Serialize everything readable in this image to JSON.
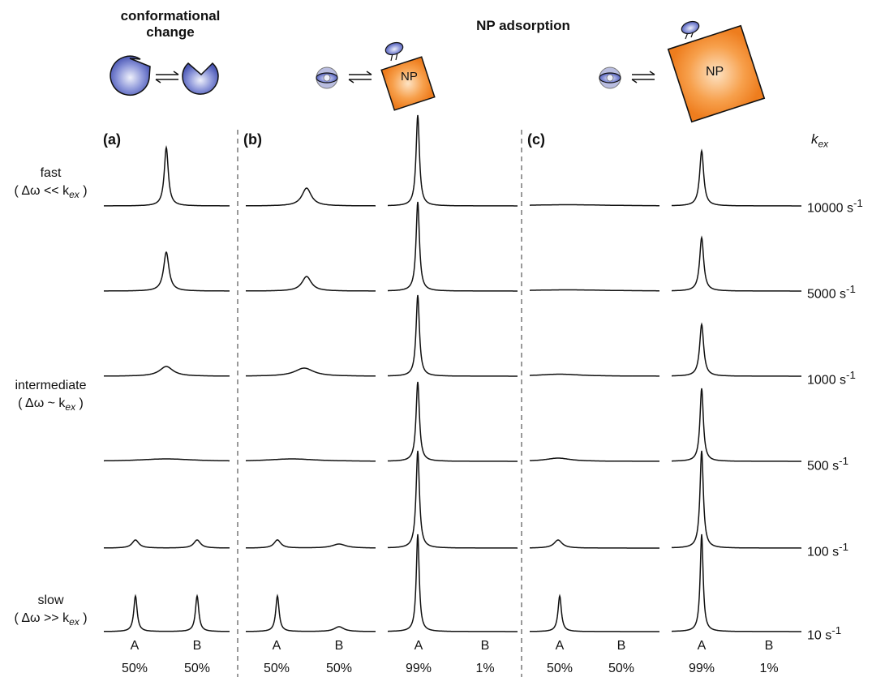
{
  "titles": {
    "left": "conformational change",
    "right": "NP adsorption"
  },
  "panels": [
    "(a)",
    "(b)",
    "(c)"
  ],
  "np_label": "NP",
  "kex_header": {
    "base": "k",
    "sub": "ex"
  },
  "side_labels": {
    "fast": {
      "name": "fast",
      "cond": "( Δω << k",
      "sub": "ex",
      "close": " )"
    },
    "intermediate": {
      "name": "intermediate",
      "cond": "( Δω ~ k",
      "sub": "ex",
      "close": " )"
    },
    "slow": {
      "name": "slow",
      "cond": "( Δω >> k",
      "sub": "ex",
      "close": " )"
    }
  },
  "rates": [
    {
      "value": "10000 s",
      "exp": "-1"
    },
    {
      "value": "5000 s",
      "exp": "-1"
    },
    {
      "value": "1000 s",
      "exp": "-1"
    },
    {
      "value": "500 s",
      "exp": "-1"
    },
    {
      "value": "100 s",
      "exp": "-1"
    },
    {
      "value": "10 s",
      "exp": "-1"
    }
  ],
  "axis_states": [
    "A",
    "B",
    "A",
    "B",
    "A",
    "B",
    "A",
    "B",
    "A",
    "B"
  ],
  "populations": [
    "50%",
    "50%",
    "50%",
    "50%",
    "99%",
    "1%",
    "50%",
    "50%",
    "99%",
    "1%"
  ],
  "colors": {
    "protein": "#5a67c4",
    "np": "#f08a2c",
    "line": "#111111"
  },
  "icons": [
    "protein-open-icon",
    "protein-closed-icon",
    "exchange-arrows-icon",
    "protein-free-icon",
    "protein-bound-icon",
    "nanoparticle-icon"
  ],
  "spectra_rows_note_units": "normalized intensity"
}
